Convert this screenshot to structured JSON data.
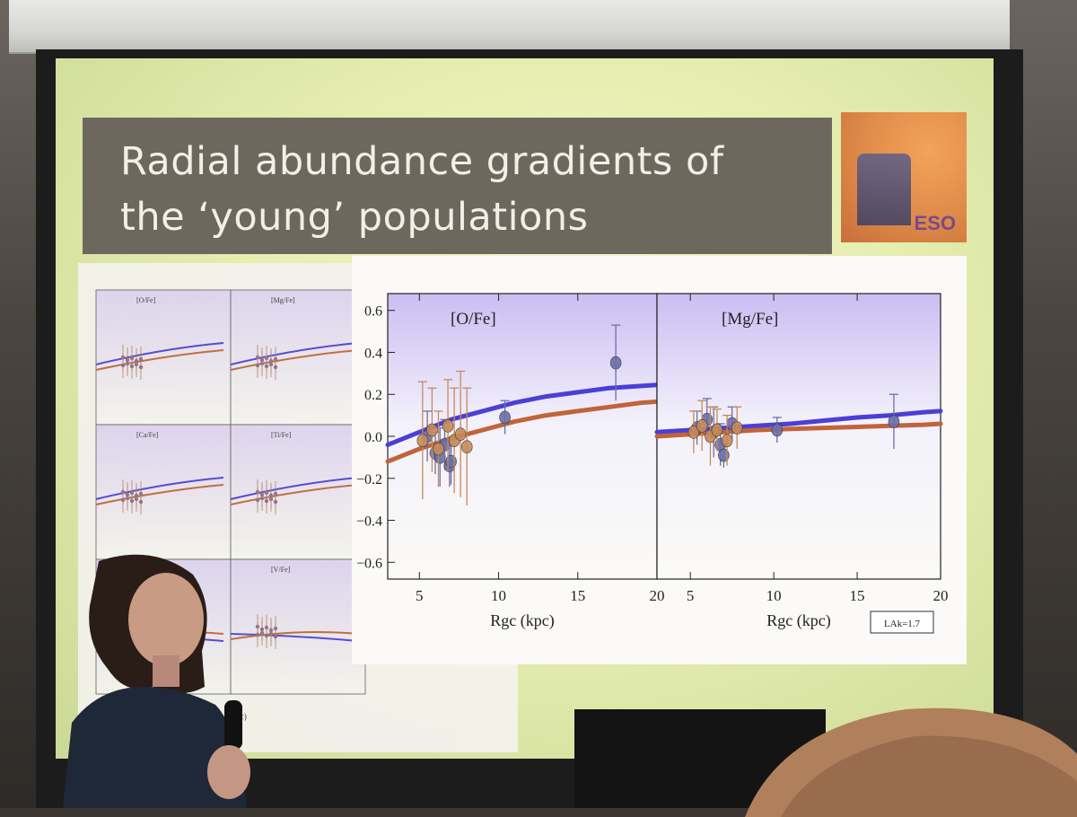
{
  "slide": {
    "title_line1": "Radial abundance gradients of",
    "title_line2": "the ‘young’ populations",
    "logo_text": "ESO"
  },
  "chart_data": [
    {
      "type": "scatter",
      "panel": "main-left",
      "title": "[O/Fe]",
      "xlabel": "Rgc (kpc)",
      "ylabel": "",
      "xlim": [
        3,
        20
      ],
      "ylim": [
        -0.68,
        0.68
      ],
      "xticks": [
        5,
        10,
        15,
        20
      ],
      "yticks": [
        -0.6,
        -0.4,
        -0.2,
        0.0,
        0.2,
        0.4,
        0.6
      ],
      "ytick_labels": [
        "−0.6",
        "−0.4",
        "−0.2",
        "0.0",
        "0.2",
        "0.4",
        "0.6"
      ],
      "series": [
        {
          "kind": "model-line",
          "color": "#4b3fd6",
          "x": [
            3,
            5,
            7,
            9,
            11,
            13,
            15,
            17,
            19,
            20
          ],
          "y": [
            -0.04,
            0.02,
            0.08,
            0.12,
            0.16,
            0.19,
            0.21,
            0.23,
            0.24,
            0.245
          ]
        },
        {
          "kind": "model-line",
          "color": "#c0643a",
          "x": [
            3,
            5,
            7,
            9,
            11,
            13,
            15,
            17,
            19,
            20
          ],
          "y": [
            -0.12,
            -0.06,
            -0.01,
            0.03,
            0.07,
            0.1,
            0.12,
            0.14,
            0.16,
            0.165
          ]
        },
        {
          "kind": "points",
          "color": "#6b6fa8",
          "x": [
            5.5,
            6.0,
            6.3,
            6.6,
            6.9,
            7.0,
            10.4,
            17.4
          ],
          "y": [
            0.0,
            -0.08,
            -0.1,
            -0.04,
            -0.14,
            -0.12,
            0.09,
            0.35
          ],
          "yerr": [
            0.12,
            0.1,
            0.14,
            0.12,
            0.1,
            0.11,
            0.08,
            0.18
          ]
        },
        {
          "kind": "points",
          "color": "#c78a5a",
          "x": [
            5.2,
            5.8,
            6.2,
            6.8,
            7.2,
            7.6,
            8.0
          ],
          "y": [
            -0.02,
            0.03,
            -0.06,
            0.05,
            -0.02,
            0.01,
            -0.05
          ],
          "yerr": [
            0.28,
            0.2,
            0.18,
            0.22,
            0.25,
            0.3,
            0.28
          ]
        }
      ]
    },
    {
      "type": "scatter",
      "panel": "main-right",
      "title": "[Mg/Fe]",
      "xlabel": "Rgc (kpc)",
      "ylabel": "",
      "xlim": [
        3,
        20
      ],
      "ylim": [
        -0.68,
        0.68
      ],
      "xticks": [
        5,
        10,
        15,
        20
      ],
      "legend_box": "LAk=1.7",
      "series": [
        {
          "kind": "model-line",
          "color": "#4b3fd6",
          "x": [
            3,
            5,
            7,
            9,
            11,
            13,
            15,
            17,
            19,
            20
          ],
          "y": [
            0.02,
            0.03,
            0.04,
            0.05,
            0.06,
            0.075,
            0.09,
            0.1,
            0.115,
            0.12
          ]
        },
        {
          "kind": "model-line",
          "color": "#c0643a",
          "x": [
            3,
            5,
            7,
            9,
            11,
            13,
            15,
            17,
            19,
            20
          ],
          "y": [
            0.0,
            0.01,
            0.02,
            0.03,
            0.035,
            0.04,
            0.045,
            0.05,
            0.055,
            0.06
          ]
        },
        {
          "kind": "points",
          "color": "#6b6fa8",
          "x": [
            5.4,
            6.0,
            6.4,
            6.8,
            7.0,
            7.5,
            10.2,
            17.2
          ],
          "y": [
            0.04,
            0.08,
            0.02,
            -0.04,
            -0.09,
            0.06,
            0.03,
            0.07
          ],
          "yerr": [
            0.08,
            0.1,
            0.12,
            0.1,
            0.06,
            0.08,
            0.06,
            0.13
          ]
        },
        {
          "kind": "points",
          "color": "#c78a5a",
          "x": [
            5.2,
            5.7,
            6.2,
            6.6,
            7.2,
            7.8
          ],
          "y": [
            0.02,
            0.05,
            0.0,
            0.03,
            -0.02,
            0.04
          ],
          "yerr": [
            0.1,
            0.12,
            0.14,
            0.1,
            0.12,
            0.1
          ]
        }
      ]
    },
    {
      "type": "scatter",
      "panel": "small-grid",
      "panels": [
        "[O/Fe]",
        "[Mg/Fe]",
        "[Ca/Fe]",
        "[Ti/Fe]",
        "",
        "[V/Fe]"
      ],
      "xlabel": "Rgc (kpc)"
    }
  ]
}
